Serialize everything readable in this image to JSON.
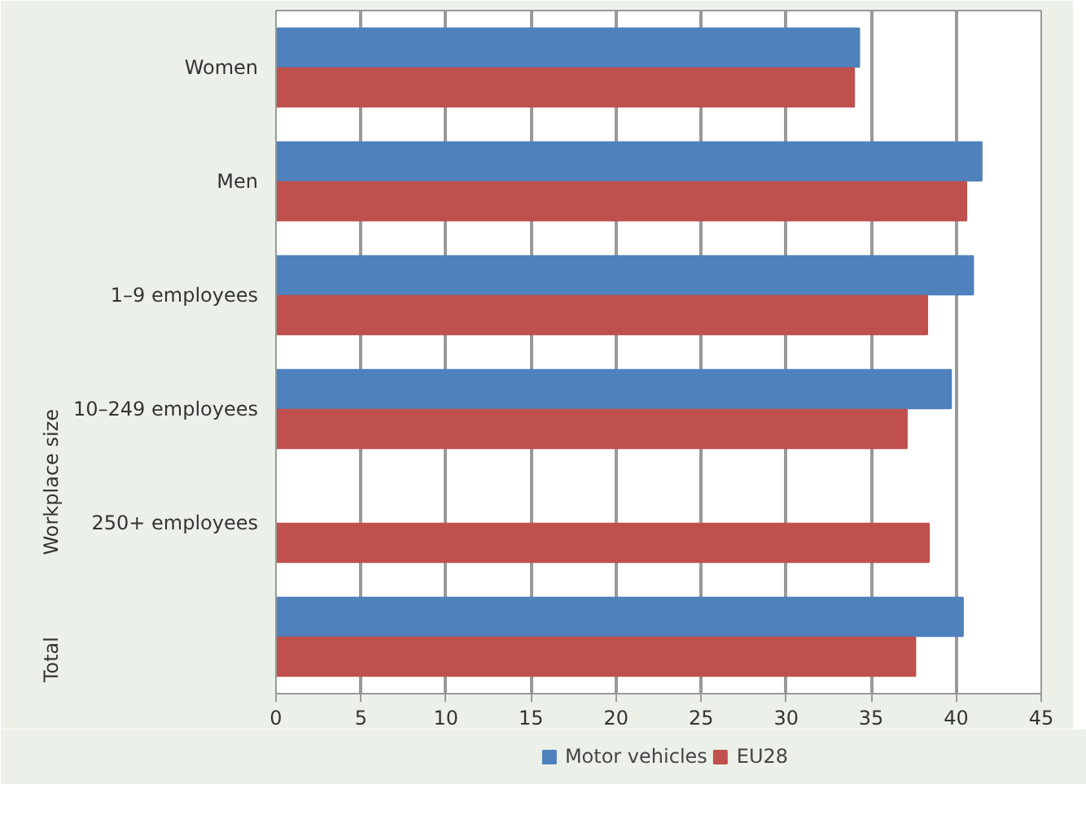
{
  "chart_data": {
    "type": "bar",
    "orientation": "horizontal",
    "categories": [
      "Women",
      "Men",
      "1–9 employees",
      "10–249 employees",
      "250+ employees",
      null
    ],
    "series": [
      {
        "name": "Motor vehicles",
        "color": "#4f81bd",
        "values": [
          34.3,
          41.5,
          41.0,
          39.7,
          null,
          40.4
        ]
      },
      {
        "name": "EU28",
        "color": "#c0504d",
        "values": [
          34.0,
          40.6,
          38.3,
          37.1,
          38.4,
          37.6
        ]
      }
    ],
    "xlim": [
      0,
      45
    ],
    "xticks": [
      0,
      5,
      10,
      15,
      20,
      25,
      30,
      35,
      40,
      45
    ],
    "annotations": [
      "Workplace size",
      "Total"
    ],
    "grid": "x",
    "legend": "bottom"
  }
}
